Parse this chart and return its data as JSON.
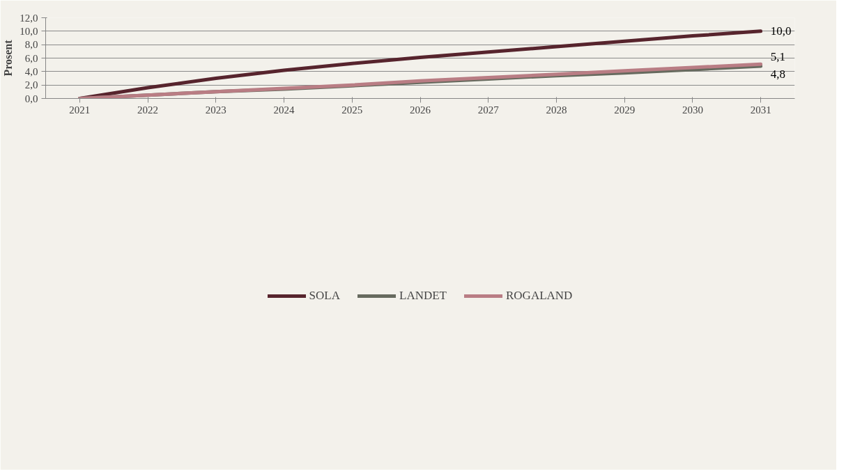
{
  "chart_data": {
    "type": "line",
    "ylabel": "Prosent",
    "categories": [
      "2021",
      "2022",
      "2023",
      "2024",
      "2025",
      "2026",
      "2027",
      "2028",
      "2029",
      "2030",
      "2031"
    ],
    "series": [
      {
        "name": "SOLA",
        "color": "#57242d",
        "values": [
          0,
          1.6,
          3.0,
          4.2,
          5.2,
          6.1,
          6.9,
          7.7,
          8.5,
          9.3,
          10.0
        ],
        "value_labels": [
          null,
          null,
          null,
          null,
          null,
          null,
          null,
          null,
          null,
          null,
          "10,0"
        ]
      },
      {
        "name": "LANDET",
        "color": "#666a5e",
        "values": [
          0,
          0.5,
          1.0,
          1.4,
          1.9,
          2.4,
          2.9,
          3.4,
          3.8,
          4.3,
          4.8
        ],
        "value_labels": [
          null,
          null,
          null,
          null,
          null,
          null,
          null,
          null,
          null,
          null,
          "4,8"
        ]
      },
      {
        "name": "ROGALAND",
        "color": "#b97d84",
        "values": [
          0,
          0.5,
          1.0,
          1.5,
          2.0,
          2.6,
          3.1,
          3.6,
          4.1,
          4.6,
          5.1
        ],
        "value_labels": [
          null,
          null,
          null,
          null,
          null,
          null,
          null,
          null,
          null,
          null,
          "5,1"
        ]
      }
    ],
    "ylim": [
      0,
      12
    ],
    "yticks": [
      {
        "value": 0,
        "label": "0,0"
      },
      {
        "value": 2,
        "label": "2,0"
      },
      {
        "value": 4,
        "label": "4,0"
      },
      {
        "value": 6,
        "label": "6,0"
      },
      {
        "value": 8,
        "label": "8,0"
      },
      {
        "value": 10,
        "label": "10,0"
      },
      {
        "value": 12,
        "label": "12,0"
      }
    ],
    "grid": "y",
    "legend": "bottom",
    "marker": "none",
    "line_style": "solid"
  }
}
